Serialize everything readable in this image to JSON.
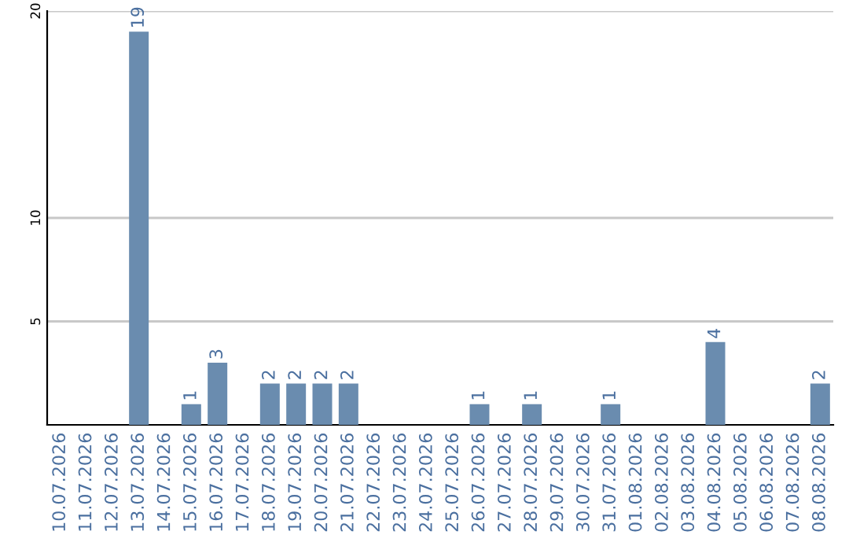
{
  "chart_data": {
    "type": "bar",
    "categories": [
      "10.07.2026",
      "11.07.2026",
      "12.07.2026",
      "13.07.2026",
      "14.07.2026",
      "15.07.2026",
      "16.07.2026",
      "17.07.2026",
      "18.07.2026",
      "19.07.2026",
      "20.07.2026",
      "21.07.2026",
      "22.07.2026",
      "23.07.2026",
      "24.07.2026",
      "25.07.2026",
      "26.07.2026",
      "27.07.2026",
      "28.07.2026",
      "29.07.2026",
      "30.07.2026",
      "31.07.2026",
      "01.08.2026",
      "02.08.2026",
      "03.08.2026",
      "04.08.2026",
      "05.08.2026",
      "06.08.2026",
      "07.08.2026",
      "08.08.2026"
    ],
    "values": [
      0,
      0,
      0,
      19,
      0,
      1,
      3,
      0,
      2,
      2,
      2,
      2,
      0,
      0,
      0,
      0,
      1,
      0,
      1,
      0,
      0,
      1,
      0,
      0,
      0,
      4,
      0,
      0,
      0,
      2
    ],
    "value_labels": [
      null,
      null,
      null,
      "19",
      null,
      "1",
      "3",
      null,
      "2",
      "2",
      "2",
      "2",
      null,
      null,
      null,
      null,
      "1",
      null,
      "1",
      null,
      null,
      "1",
      null,
      null,
      null,
      "4",
      null,
      null,
      null,
      "2"
    ],
    "color": "#6a8caf",
    "ylim": [
      0,
      20
    ],
    "yticks": [
      5,
      10,
      20
    ],
    "grid": "y"
  }
}
